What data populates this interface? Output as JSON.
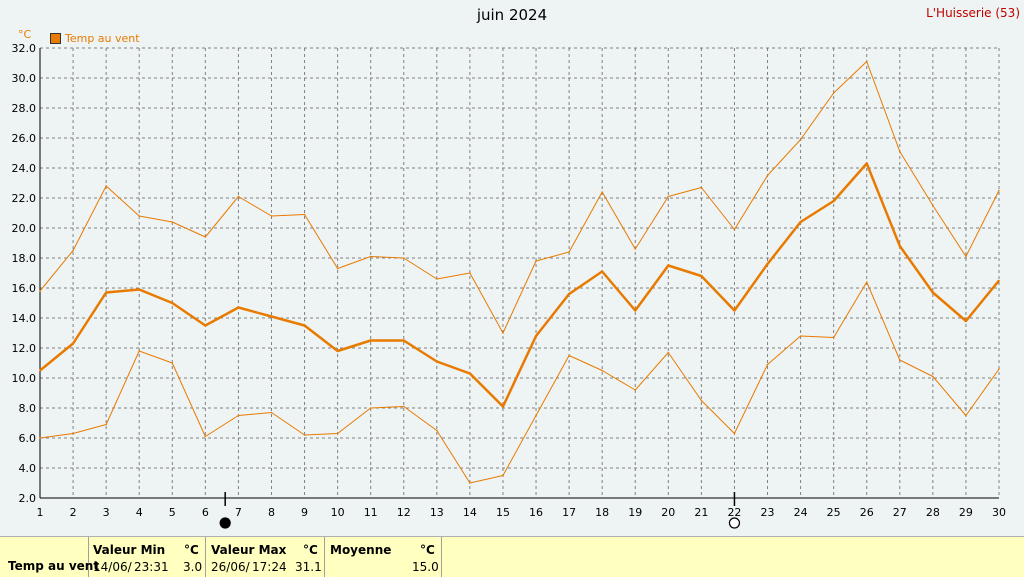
{
  "title": "juin 2024",
  "station": "L'Huisserie (53)",
  "unit": "°C",
  "legend_label": "Temp au vent",
  "chart_data": {
    "type": "line",
    "x": [
      1,
      2,
      3,
      4,
      5,
      6,
      7,
      8,
      9,
      10,
      11,
      12,
      13,
      14,
      15,
      16,
      17,
      18,
      19,
      20,
      21,
      22,
      23,
      24,
      25,
      26,
      27,
      28,
      29,
      30
    ],
    "ylim": [
      2.0,
      32.0
    ],
    "yticks": [
      "2.0",
      "4.0",
      "6.0",
      "8.0",
      "10.0",
      "12.0",
      "14.0",
      "16.0",
      "18.0",
      "20.0",
      "22.0",
      "24.0",
      "26.0",
      "28.0",
      "30.0",
      "32.0"
    ],
    "grid": true,
    "series": [
      {
        "role": "max",
        "color": "#e87a00",
        "values": [
          15.8,
          18.5,
          22.8,
          20.8,
          20.4,
          19.4,
          22.1,
          20.8,
          20.9,
          17.3,
          18.1,
          18.0,
          16.6,
          17.0,
          13.0,
          17.8,
          18.4,
          22.4,
          18.6,
          22.1,
          22.7,
          19.9,
          23.5,
          25.9,
          29.0,
          31.1,
          25.1,
          21.5,
          18.1,
          22.5
        ]
      },
      {
        "role": "mean",
        "color": "#e87a00",
        "values": [
          10.5,
          12.3,
          15.7,
          15.9,
          15.0,
          13.5,
          14.7,
          14.1,
          13.5,
          11.8,
          12.5,
          12.5,
          11.1,
          10.3,
          8.1,
          12.8,
          15.6,
          17.1,
          14.5,
          17.5,
          16.8,
          14.5,
          17.6,
          20.4,
          21.8,
          24.3,
          18.8,
          15.7,
          13.8,
          16.5
        ]
      },
      {
        "role": "min",
        "color": "#e87a00",
        "values": [
          6.0,
          6.3,
          6.9,
          11.8,
          11.0,
          6.1,
          7.5,
          7.7,
          6.2,
          6.3,
          8.0,
          8.1,
          6.5,
          3.0,
          3.5,
          7.5,
          11.5,
          10.5,
          9.2,
          11.7,
          8.5,
          6.3,
          10.9,
          12.8,
          12.7,
          16.4,
          11.2,
          10.1,
          7.5,
          10.6
        ]
      }
    ],
    "moon_phases": [
      {
        "day": 6.6,
        "phase": "new-moon"
      },
      {
        "day": 22,
        "phase": "full-moon"
      }
    ]
  },
  "stats": {
    "row_label": "Temp au vent",
    "min_header": "Valeur Min",
    "max_header": "Valeur Max",
    "mean_header": "Moyenne",
    "unit": "°C",
    "min_date": "14/06/",
    "min_time": "23:31",
    "min_value": "3.0",
    "max_date": "26/06/",
    "max_time": "17:24",
    "max_value": "31.1",
    "mean_value": "15.0"
  }
}
